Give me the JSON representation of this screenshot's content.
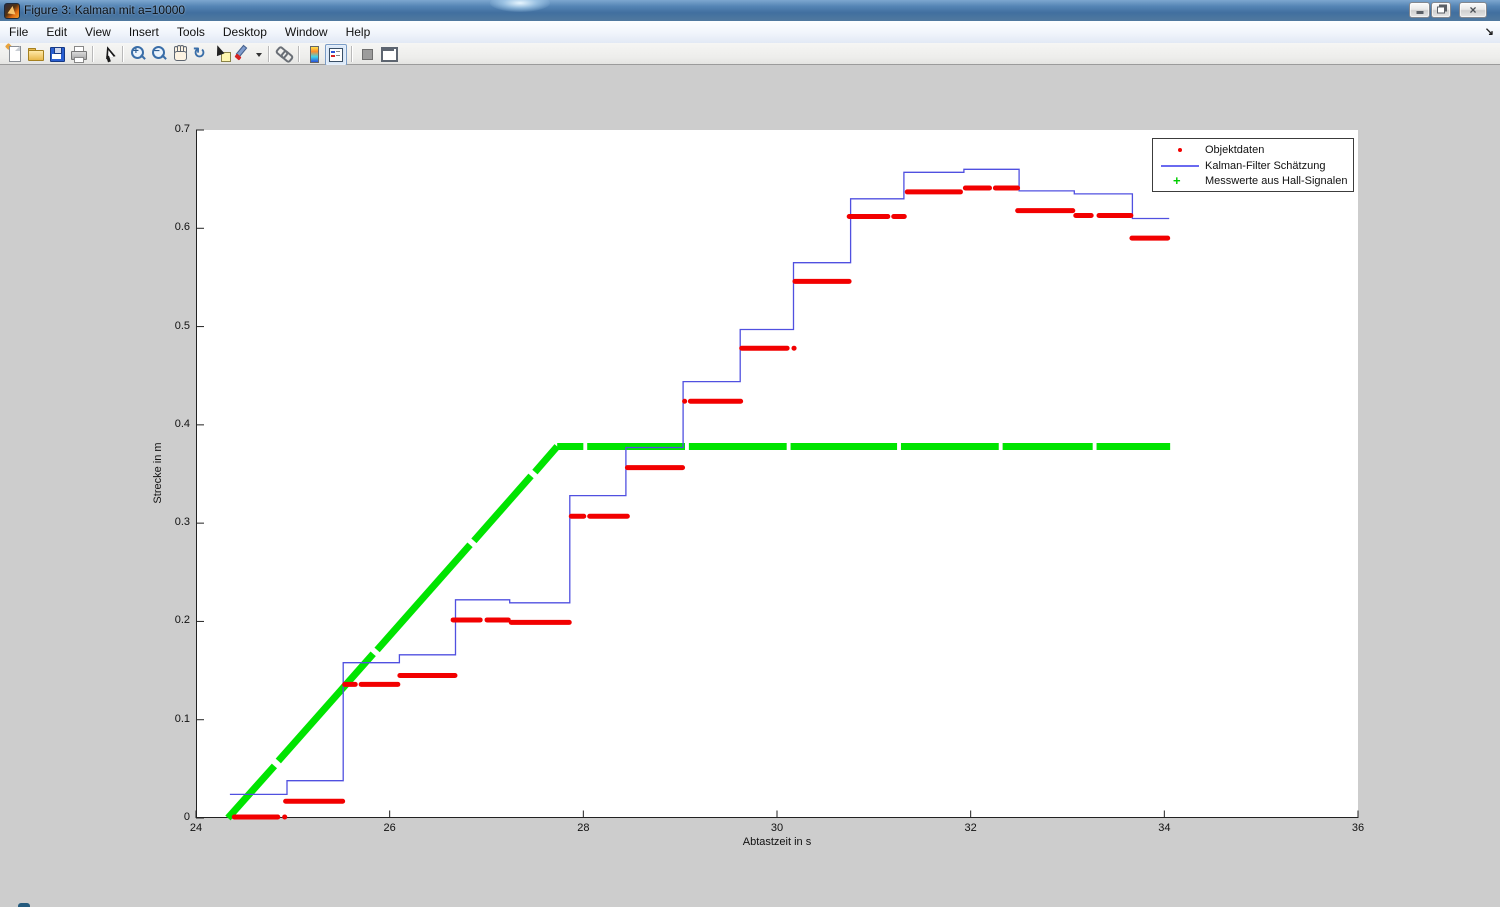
{
  "window": {
    "title": "Figure 3: Kalman mit a=10000",
    "controls": [
      {
        "name": "minimize-button"
      },
      {
        "name": "restore-button"
      },
      {
        "name": "close-button"
      }
    ]
  },
  "menu": {
    "items": [
      "File",
      "Edit",
      "View",
      "Insert",
      "Tools",
      "Desktop",
      "Window",
      "Help"
    ],
    "dock_arrow": "↘"
  },
  "toolbar": {
    "buttons": [
      {
        "name": "new-figure-icon",
        "cls": "i-new",
        "parts": [
          "star",
          "page",
          "fold"
        ]
      },
      {
        "name": "open-file-icon",
        "cls": "i-open",
        "parts": [
          "tab",
          "body"
        ]
      },
      {
        "name": "save-figure-icon",
        "cls": "i-save",
        "parts": [
          "body",
          "shutter",
          "label"
        ]
      },
      {
        "name": "print-figure-icon",
        "cls": "i-print",
        "parts": [
          "paper",
          "body",
          "out"
        ]
      },
      {
        "name": "separator"
      },
      {
        "name": "edit-plot-icon",
        "cls": "i-pointer",
        "parts": [
          "tri",
          "tail"
        ]
      },
      {
        "name": "separator"
      },
      {
        "name": "zoom-in-icon",
        "cls": "i-zin",
        "parts": [
          "lens",
          "handle",
          "sign"
        ],
        "text": {
          "sign": "+"
        }
      },
      {
        "name": "zoom-out-icon",
        "cls": "i-zout",
        "parts": [
          "lens",
          "handle",
          "sign"
        ],
        "text": {
          "sign": "−"
        }
      },
      {
        "name": "pan-icon",
        "cls": "i-pan",
        "parts": [
          "f1",
          "f2",
          "f3",
          "f4",
          "palm"
        ]
      },
      {
        "name": "rotate-3d-icon",
        "cls": "i-rotate",
        "parts": [
          "g"
        ],
        "text": {
          "g": "↻"
        }
      },
      {
        "name": "data-cursor-icon",
        "cls": "i-dcur",
        "parts": [
          "note",
          "cur"
        ]
      },
      {
        "name": "brush-data-icon",
        "cls": "i-brush",
        "parts": [
          "handle",
          "tip"
        ]
      },
      {
        "name": "brush-dropdown-caret-icon",
        "cls": "i-caret",
        "parts": [
          "tri"
        ]
      },
      {
        "name": "separator"
      },
      {
        "name": "link-plot-icon",
        "cls": "i-link",
        "parts": [
          "r1",
          "r2"
        ]
      },
      {
        "name": "separator"
      },
      {
        "name": "insert-colorbar-icon",
        "cls": "i-cbar",
        "parts": [
          "bar"
        ]
      },
      {
        "name": "insert-legend-icon",
        "cls": "i-legend",
        "parts": [
          "box",
          "l1",
          "t1",
          "l2",
          "t2"
        ],
        "pressed": true
      },
      {
        "name": "separator"
      },
      {
        "name": "hide-plot-tools-icon",
        "cls": "i-hide",
        "parts": [
          "sq"
        ]
      },
      {
        "name": "dock-figure-icon",
        "cls": "i-dock",
        "parts": [
          "win",
          "bar"
        ]
      }
    ]
  },
  "chart_data": {
    "type": "line",
    "title": "",
    "xlabel": "Abtastzeit in s",
    "ylabel": "Strecke in m",
    "xlim": [
      24,
      36
    ],
    "ylim": [
      0,
      0.7
    ],
    "xticks": [
      "24",
      "26",
      "28",
      "30",
      "32",
      "34",
      "36"
    ],
    "yticks": [
      "0",
      "0.1",
      "0.2",
      "0.3",
      "0.4",
      "0.5",
      "0.6",
      "0.7"
    ],
    "grid": false,
    "legend": {
      "position": "top-right",
      "entries": [
        {
          "label": "Objektdaten",
          "marker": "dot",
          "color": "#ff0000"
        },
        {
          "label": "Kalman-Filter Schätzung",
          "marker": "line",
          "color": "#5a5ae8"
        },
        {
          "label": "Messwerte aus Hall-Signalen",
          "marker": "plus",
          "color": "#00cc00"
        }
      ]
    },
    "series": [
      {
        "name": "Objektdaten",
        "style": "segments",
        "color": "#f20000",
        "segments": [
          [
            24.38,
            24.86,
            0.001
          ],
          [
            24.9,
            24.92,
            0.001
          ],
          [
            24.91,
            25.53,
            0.017
          ],
          [
            25.52,
            25.66,
            0.136
          ],
          [
            25.69,
            26.1,
            0.136
          ],
          [
            26.09,
            26.69,
            0.145
          ],
          [
            26.64,
            26.95,
            0.2015
          ],
          [
            26.99,
            27.24,
            0.2015
          ],
          [
            27.24,
            27.87,
            0.199
          ],
          [
            27.86,
            28.02,
            0.307
          ],
          [
            28.05,
            28.47,
            0.307
          ],
          [
            28.44,
            29.04,
            0.3565
          ],
          [
            29.03,
            29.05,
            0.424
          ],
          [
            29.09,
            29.64,
            0.424
          ],
          [
            29.62,
            30.12,
            0.478
          ],
          [
            30.16,
            30.18,
            0.478
          ],
          [
            30.17,
            30.76,
            0.546
          ],
          [
            30.73,
            31.16,
            0.612
          ],
          [
            31.19,
            31.33,
            0.612
          ],
          [
            31.33,
            31.91,
            0.637
          ],
          [
            31.93,
            32.21,
            0.641
          ],
          [
            32.24,
            32.5,
            0.641
          ],
          [
            32.47,
            33.07,
            0.618
          ],
          [
            33.07,
            33.26,
            0.613
          ],
          [
            33.31,
            33.67,
            0.613
          ],
          [
            33.65,
            34.05,
            0.59
          ]
        ]
      },
      {
        "name": "Kalman-Filter Schätzung",
        "style": "steps",
        "color": "#5050e0",
        "steps": [
          [
            24.35,
            24.94,
            0.024
          ],
          [
            24.94,
            25.52,
            0.038
          ],
          [
            25.52,
            26.1,
            0.158
          ],
          [
            26.1,
            26.68,
            0.166
          ],
          [
            26.68,
            27.24,
            0.222
          ],
          [
            27.24,
            27.86,
            0.219
          ],
          [
            27.86,
            28.44,
            0.328
          ],
          [
            28.44,
            29.03,
            0.377
          ],
          [
            29.03,
            29.62,
            0.444
          ],
          [
            29.62,
            30.17,
            0.497
          ],
          [
            30.17,
            30.76,
            0.565
          ],
          [
            30.76,
            31.31,
            0.63
          ],
          [
            31.31,
            31.93,
            0.657
          ],
          [
            31.93,
            32.5,
            0.66
          ],
          [
            32.5,
            33.07,
            0.638
          ],
          [
            33.07,
            33.67,
            0.635
          ],
          [
            33.67,
            34.05,
            0.61
          ]
        ]
      },
      {
        "name": "Messwerte aus Hall-Signalen",
        "style": "lines",
        "color": "#00e400",
        "lines": [
          [
            24.33,
            0.0,
            24.81,
            0.053
          ],
          [
            24.85,
            0.058,
            25.83,
            0.167
          ],
          [
            25.87,
            0.171,
            26.83,
            0.278
          ],
          [
            26.87,
            0.282,
            27.46,
            0.348
          ],
          [
            27.5,
            0.352,
            27.73,
            0.378
          ],
          [
            27.73,
            0.378,
            28.0,
            0.378
          ],
          [
            28.04,
            0.378,
            29.05,
            0.378
          ],
          [
            29.09,
            0.378,
            30.1,
            0.378
          ],
          [
            30.14,
            0.378,
            31.24,
            0.378
          ],
          [
            31.28,
            0.378,
            32.29,
            0.378
          ],
          [
            32.33,
            0.378,
            33.26,
            0.378
          ],
          [
            33.3,
            0.378,
            34.06,
            0.378
          ]
        ]
      }
    ]
  }
}
